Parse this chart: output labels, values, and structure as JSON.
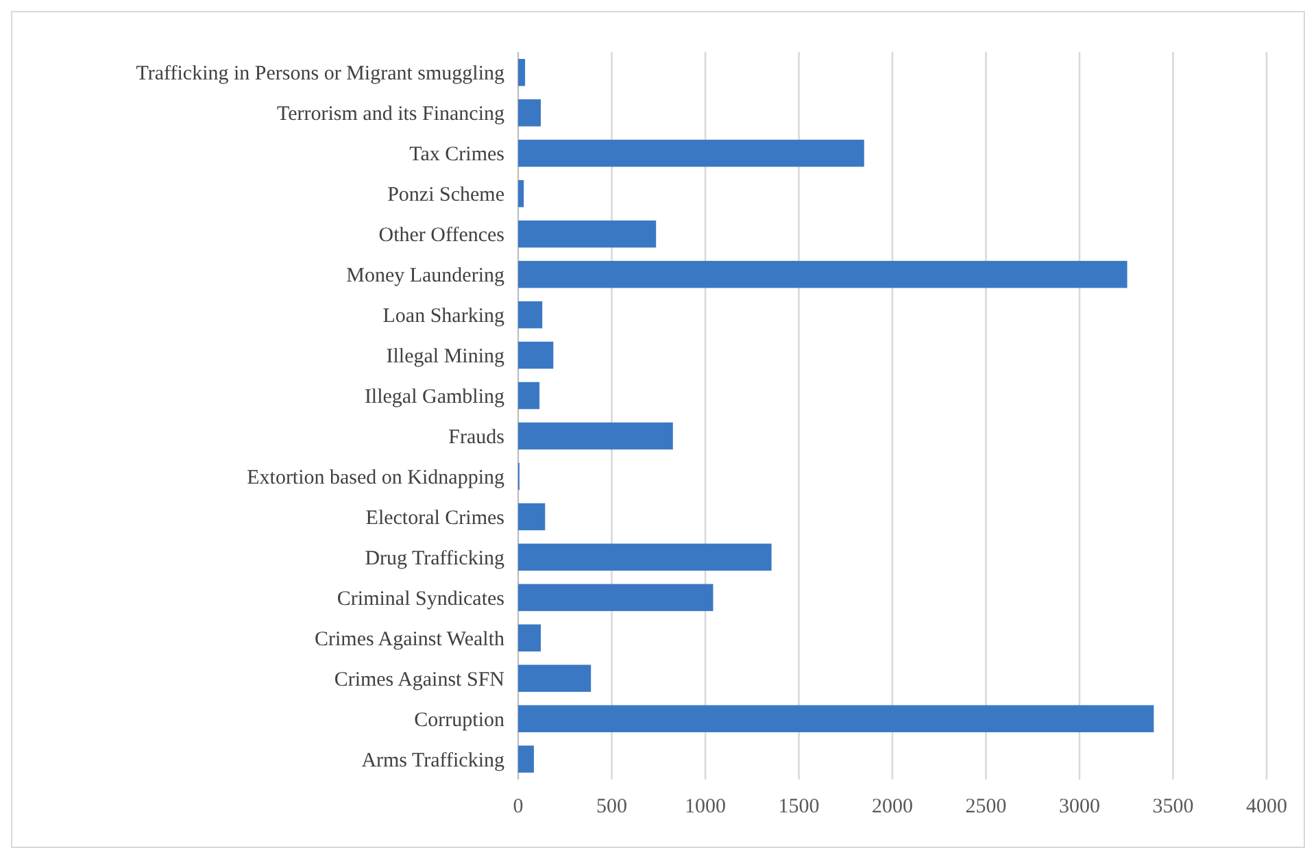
{
  "chart_data": {
    "type": "bar",
    "orientation": "horizontal",
    "categories": [
      "Trafficking in Persons or Migrant smuggling",
      "Terrorism and its Financing",
      "Tax Crimes",
      "Ponzi Scheme",
      "Other Offences",
      "Money Laundering",
      "Loan Sharking",
      "Illegal Mining",
      "Illegal Gambling",
      "Frauds",
      "Extortion based on Kidnapping",
      "Electoral Crimes",
      "Drug Trafficking",
      "Criminal Syndicates",
      "Crimes Against Wealth",
      "Crimes Against SFN",
      "Corruption",
      "Arms Trafficking"
    ],
    "values": [
      37,
      121,
      1849,
      30,
      737,
      3255,
      129,
      188,
      114,
      827,
      7,
      144,
      1354,
      1042,
      121,
      389,
      3397,
      84
    ],
    "color": "#3a78c4",
    "xlim": [
      0,
      4000
    ],
    "xticks": [
      0,
      500,
      1000,
      1500,
      2000,
      2500,
      3000,
      3500,
      4000
    ],
    "grid": "x"
  }
}
